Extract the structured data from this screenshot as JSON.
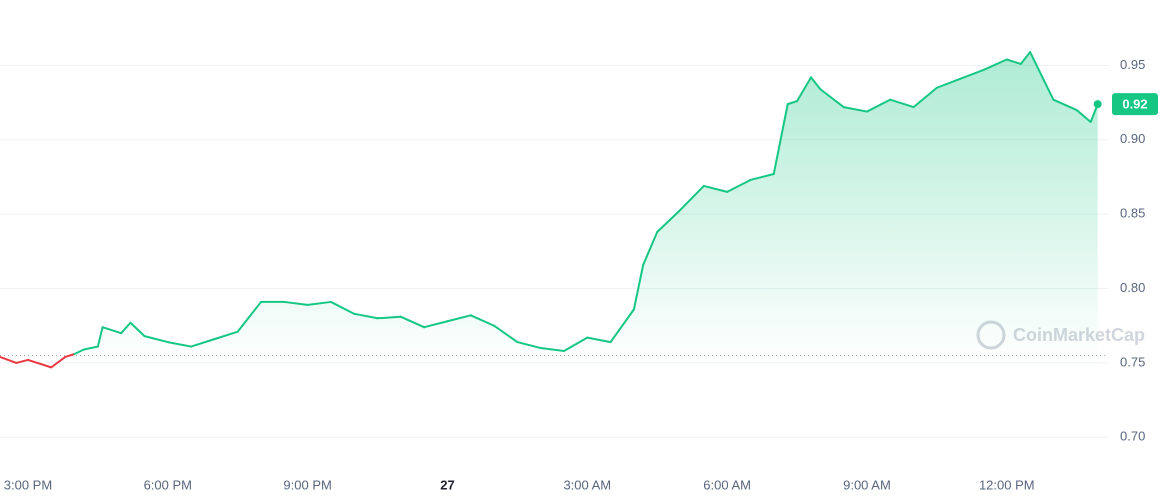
{
  "chart_data": {
    "type": "line",
    "x": [
      14.4,
      14.75,
      15.0,
      15.5,
      15.8,
      16.0,
      16.2,
      16.5,
      16.6,
      17.0,
      17.2,
      17.5,
      18.0,
      18.5,
      19.0,
      19.5,
      20.0,
      20.5,
      21.0,
      21.5,
      22.0,
      22.5,
      23.0,
      23.5,
      24.0,
      24.5,
      25.0,
      25.5,
      26.0,
      26.5,
      27.0,
      27.5,
      28.0,
      28.2,
      28.5,
      29.0,
      29.5,
      30.0,
      30.5,
      31.0,
      31.3,
      31.5,
      31.8,
      32.0,
      32.5,
      33.0,
      33.5,
      34.0,
      34.5,
      35.0,
      35.5,
      36.0,
      36.3,
      36.5,
      37.0,
      37.5,
      37.8,
      37.95
    ],
    "series": [
      {
        "color": "#16c784",
        "below_color": "#ea3943",
        "values": [
          0.754,
          0.75,
          0.752,
          0.747,
          0.754,
          0.756,
          0.759,
          0.761,
          0.774,
          0.77,
          0.777,
          0.768,
          0.764,
          0.761,
          0.766,
          0.771,
          0.791,
          0.791,
          0.789,
          0.791,
          0.783,
          0.78,
          0.781,
          0.774,
          0.778,
          0.782,
          0.775,
          0.764,
          0.76,
          0.758,
          0.767,
          0.764,
          0.786,
          0.816,
          0.838,
          0.853,
          0.869,
          0.865,
          0.873,
          0.877,
          0.924,
          0.926,
          0.942,
          0.934,
          0.922,
          0.919,
          0.927,
          0.922,
          0.935,
          0.941,
          0.947,
          0.954,
          0.951,
          0.959,
          0.927,
          0.92,
          0.912,
          0.924
        ]
      }
    ],
    "reference_line": 0.755,
    "last_value_label": "0.92",
    "xlim": [
      14.4,
      38.3
    ],
    "xticks": [
      {
        "value": 15,
        "label": "3:00 PM"
      },
      {
        "value": 18,
        "label": "6:00 PM"
      },
      {
        "value": 21,
        "label": "9:00 PM"
      },
      {
        "value": 24,
        "label": "27"
      },
      {
        "value": 27,
        "label": "3:00 AM"
      },
      {
        "value": 30,
        "label": "6:00 AM"
      },
      {
        "value": 33,
        "label": "9:00 AM"
      },
      {
        "value": 36,
        "label": "12:00 PM"
      }
    ],
    "ylim": [
      0.678,
      0.994
    ],
    "yticks": [
      {
        "value": 0.7,
        "label": "0.70"
      },
      {
        "value": 0.75,
        "label": "0.75"
      },
      {
        "value": 0.8,
        "label": "0.80"
      },
      {
        "value": 0.85,
        "label": "0.85"
      },
      {
        "value": 0.9,
        "label": "0.90"
      },
      {
        "value": 0.95,
        "label": "0.95"
      }
    ],
    "grid": true,
    "watermark": "CoinMarketCap"
  }
}
